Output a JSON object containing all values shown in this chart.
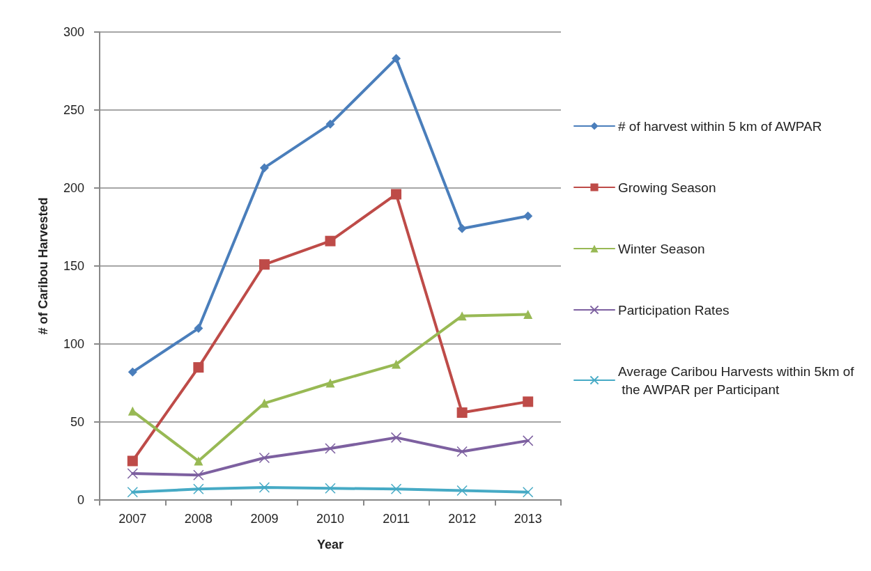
{
  "chart_data": {
    "type": "line",
    "xlabel": "Year",
    "ylabel": "# of Caribou Harvested",
    "categories": [
      "2007",
      "2008",
      "2009",
      "2010",
      "2011",
      "2012",
      "2013"
    ],
    "series": [
      {
        "name": "# of harvest within 5 km of AWPAR",
        "color": "#4a7ebb",
        "marker": "diamond",
        "values": [
          82,
          110,
          213,
          241,
          283,
          174,
          182
        ]
      },
      {
        "name": "Growing Season",
        "color": "#be4b48",
        "marker": "square",
        "values": [
          25,
          85,
          151,
          166,
          196,
          56,
          63
        ]
      },
      {
        "name": "Winter Season",
        "color": "#98b954",
        "marker": "triangle",
        "values": [
          57,
          25,
          62,
          75,
          87,
          118,
          119
        ]
      },
      {
        "name": "Participation Rates",
        "color": "#7d60a0",
        "marker": "cross",
        "values": [
          17,
          16,
          27,
          33,
          40,
          31,
          38
        ]
      },
      {
        "name": "Average Caribou Harvests within 5km of the AWPAR per Participant",
        "color": "#46aac5",
        "marker": "cross",
        "values": [
          5,
          7,
          8,
          7.5,
          7,
          6,
          5
        ]
      }
    ],
    "ylim": [
      0,
      300
    ],
    "yticks": [
      0,
      50,
      100,
      150,
      200,
      250,
      300
    ],
    "grid": "y",
    "legend": "right",
    "line_style": "solid"
  }
}
